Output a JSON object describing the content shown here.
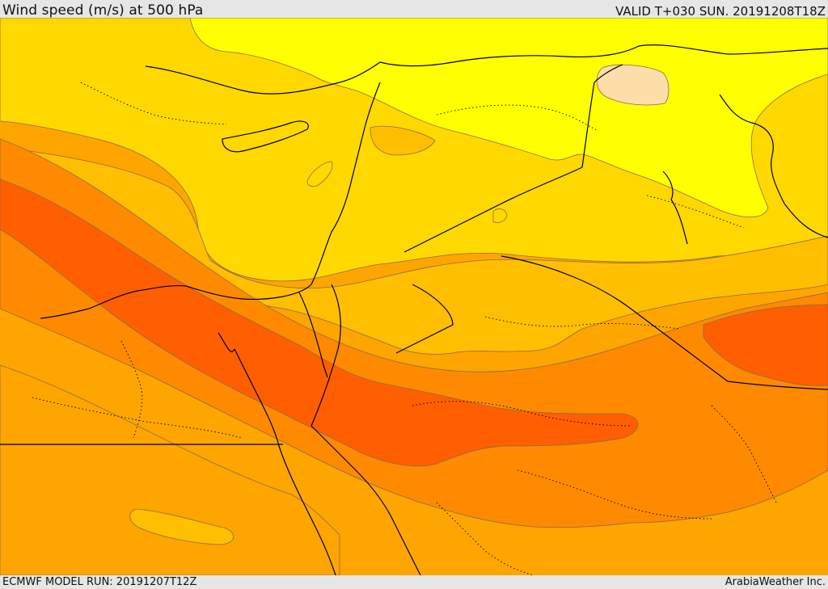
{
  "header": {
    "title": "Wind speed (m/s) at 500 hPa",
    "valid": "VALID T+030 SUN. 20191208T18Z"
  },
  "footer": {
    "model_run": "ECMWF MODEL RUN: 20191207T12Z",
    "credit": "ArabiaWeather Inc."
  },
  "map": {
    "variable": "wind speed",
    "level": "500 hPa",
    "units": "m/s",
    "colors": {
      "lightest_band": "#ffff00",
      "light_band": "#ffd800",
      "mid_light_band": "#ffbf00",
      "mid_band": "#ffa500",
      "strong_band": "#ff8a00",
      "strongest_band": "#ff5f00",
      "weak_patch": "#fddeaa",
      "contour_line": "#8a6a50",
      "coastline": "#000000"
    }
  }
}
